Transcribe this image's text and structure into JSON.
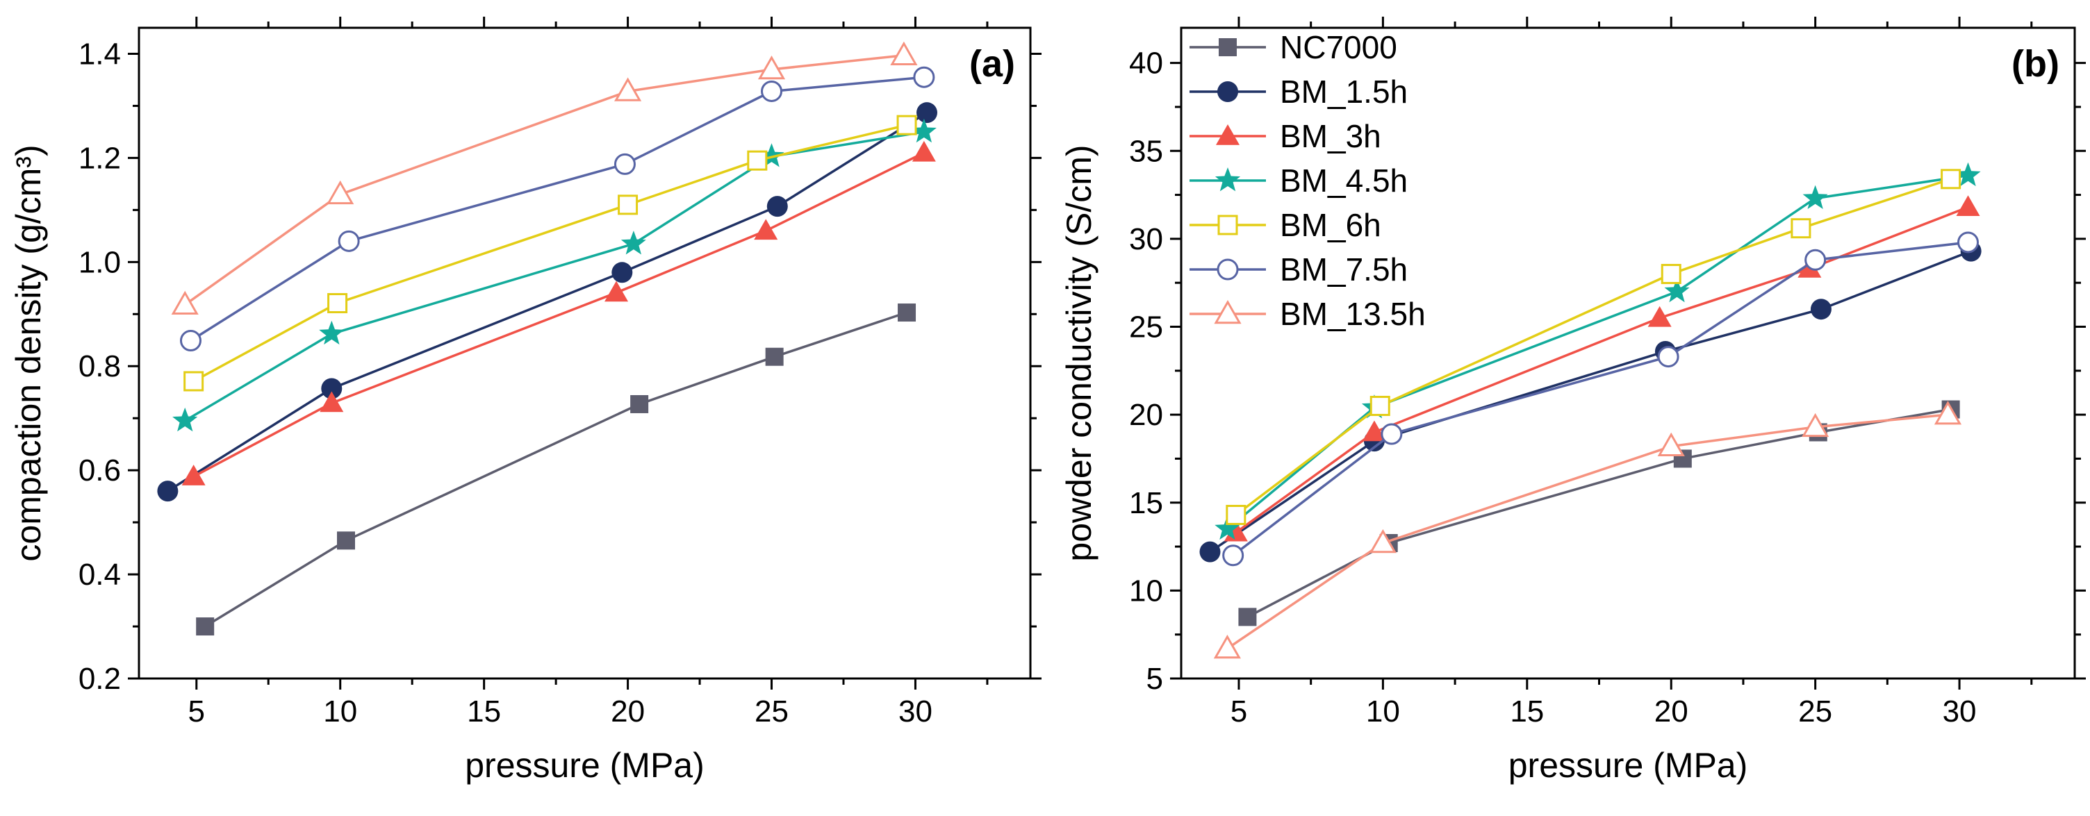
{
  "chart_data": [
    {
      "type": "line",
      "panel_label": "(a)",
      "xlabel": "pressure (MPa)",
      "ylabel": "compaction density (g/cm³)",
      "xlim": [
        3,
        34
      ],
      "ylim": [
        0.2,
        1.45
      ],
      "xticks": [
        "5",
        "10",
        "15",
        "20",
        "25",
        "30"
      ],
      "yticks": [
        "0.2",
        "0.4",
        "0.6",
        "0.8",
        "1.0",
        "1.2",
        "1.4"
      ],
      "series": [
        {
          "name": "NC7000",
          "color": "#5d5d6e",
          "marker": "square",
          "x": [
            5.3,
            10.2,
            20.4,
            25.1,
            29.7
          ],
          "y": [
            0.3,
            0.465,
            0.727,
            0.818,
            0.903
          ]
        },
        {
          "name": "BM_1.5h",
          "color": "#1f3164",
          "marker": "circle",
          "x": [
            4.0,
            9.7,
            19.8,
            25.2,
            30.4
          ],
          "y": [
            0.56,
            0.757,
            0.98,
            1.107,
            1.287
          ]
        },
        {
          "name": "BM_3h",
          "color": "#f05147",
          "marker": "triangle",
          "x": [
            4.9,
            9.7,
            19.6,
            24.8,
            30.3
          ],
          "y": [
            0.588,
            0.729,
            0.941,
            1.06,
            1.21
          ]
        },
        {
          "name": "BM_4.5h",
          "color": "#13ab9b",
          "marker": "star",
          "x": [
            4.6,
            9.7,
            20.2,
            25.0,
            30.3
          ],
          "y": [
            0.695,
            0.862,
            1.035,
            1.203,
            1.25
          ]
        },
        {
          "name": "BM_6h",
          "color": "#e3cd16",
          "marker": "square-open",
          "x": [
            4.9,
            9.9,
            20.0,
            24.5,
            29.7
          ],
          "y": [
            0.771,
            0.921,
            1.11,
            1.195,
            1.263
          ]
        },
        {
          "name": "BM_7.5h",
          "color": "#5764a4",
          "marker": "circle-open",
          "x": [
            4.8,
            10.3,
            19.9,
            25.0,
            30.3
          ],
          "y": [
            0.849,
            1.04,
            1.188,
            1.328,
            1.355
          ]
        },
        {
          "name": "BM_13.5h",
          "color": "#f6927f",
          "marker": "triangle-open",
          "x": [
            4.6,
            10.0,
            20.0,
            25.0,
            29.6
          ],
          "y": [
            0.918,
            1.13,
            1.328,
            1.37,
            1.397
          ]
        }
      ]
    },
    {
      "type": "line",
      "panel_label": "(b)",
      "xlabel": "pressure (MPa)",
      "ylabel": "powder conductivity (S/cm)",
      "xlim": [
        3,
        34
      ],
      "ylim": [
        5,
        42
      ],
      "xticks": [
        "5",
        "10",
        "15",
        "20",
        "25",
        "30"
      ],
      "yticks": [
        "5",
        "10",
        "15",
        "20",
        "25",
        "30",
        "35",
        "40"
      ],
      "legend_position": "top-left",
      "series": [
        {
          "name": "NC7000",
          "color": "#5d5d6e",
          "marker": "square",
          "x": [
            5.3,
            10.2,
            20.4,
            25.1,
            29.7
          ],
          "y": [
            8.5,
            12.7,
            17.5,
            19.0,
            20.3
          ]
        },
        {
          "name": "BM_1.5h",
          "color": "#1f3164",
          "marker": "circle",
          "x": [
            4.0,
            9.7,
            19.8,
            25.2,
            30.4
          ],
          "y": [
            12.2,
            18.5,
            23.6,
            26.0,
            29.3
          ]
        },
        {
          "name": "BM_3h",
          "color": "#f05147",
          "marker": "triangle",
          "x": [
            4.9,
            9.7,
            19.6,
            24.8,
            30.3
          ],
          "y": [
            13.3,
            19.0,
            25.5,
            28.3,
            31.8
          ]
        },
        {
          "name": "BM_4.5h",
          "color": "#13ab9b",
          "marker": "star",
          "x": [
            4.6,
            9.7,
            20.2,
            25.0,
            30.3
          ],
          "y": [
            13.5,
            20.4,
            27.0,
            32.3,
            33.6
          ]
        },
        {
          "name": "BM_6h",
          "color": "#e3cd16",
          "marker": "square-open",
          "x": [
            4.9,
            9.9,
            20.0,
            24.5,
            29.7
          ],
          "y": [
            14.3,
            20.5,
            28.0,
            30.6,
            33.4
          ]
        },
        {
          "name": "BM_7.5h",
          "color": "#5764a4",
          "marker": "circle-open",
          "x": [
            4.8,
            10.3,
            19.9,
            25.0,
            30.3
          ],
          "y": [
            12.0,
            18.9,
            23.3,
            28.8,
            29.8
          ]
        },
        {
          "name": "BM_13.5h",
          "color": "#f6927f",
          "marker": "triangle-open",
          "x": [
            4.6,
            10.0,
            20.0,
            25.0,
            29.6
          ],
          "y": [
            6.7,
            12.7,
            18.2,
            19.3,
            20.0
          ]
        }
      ]
    }
  ]
}
